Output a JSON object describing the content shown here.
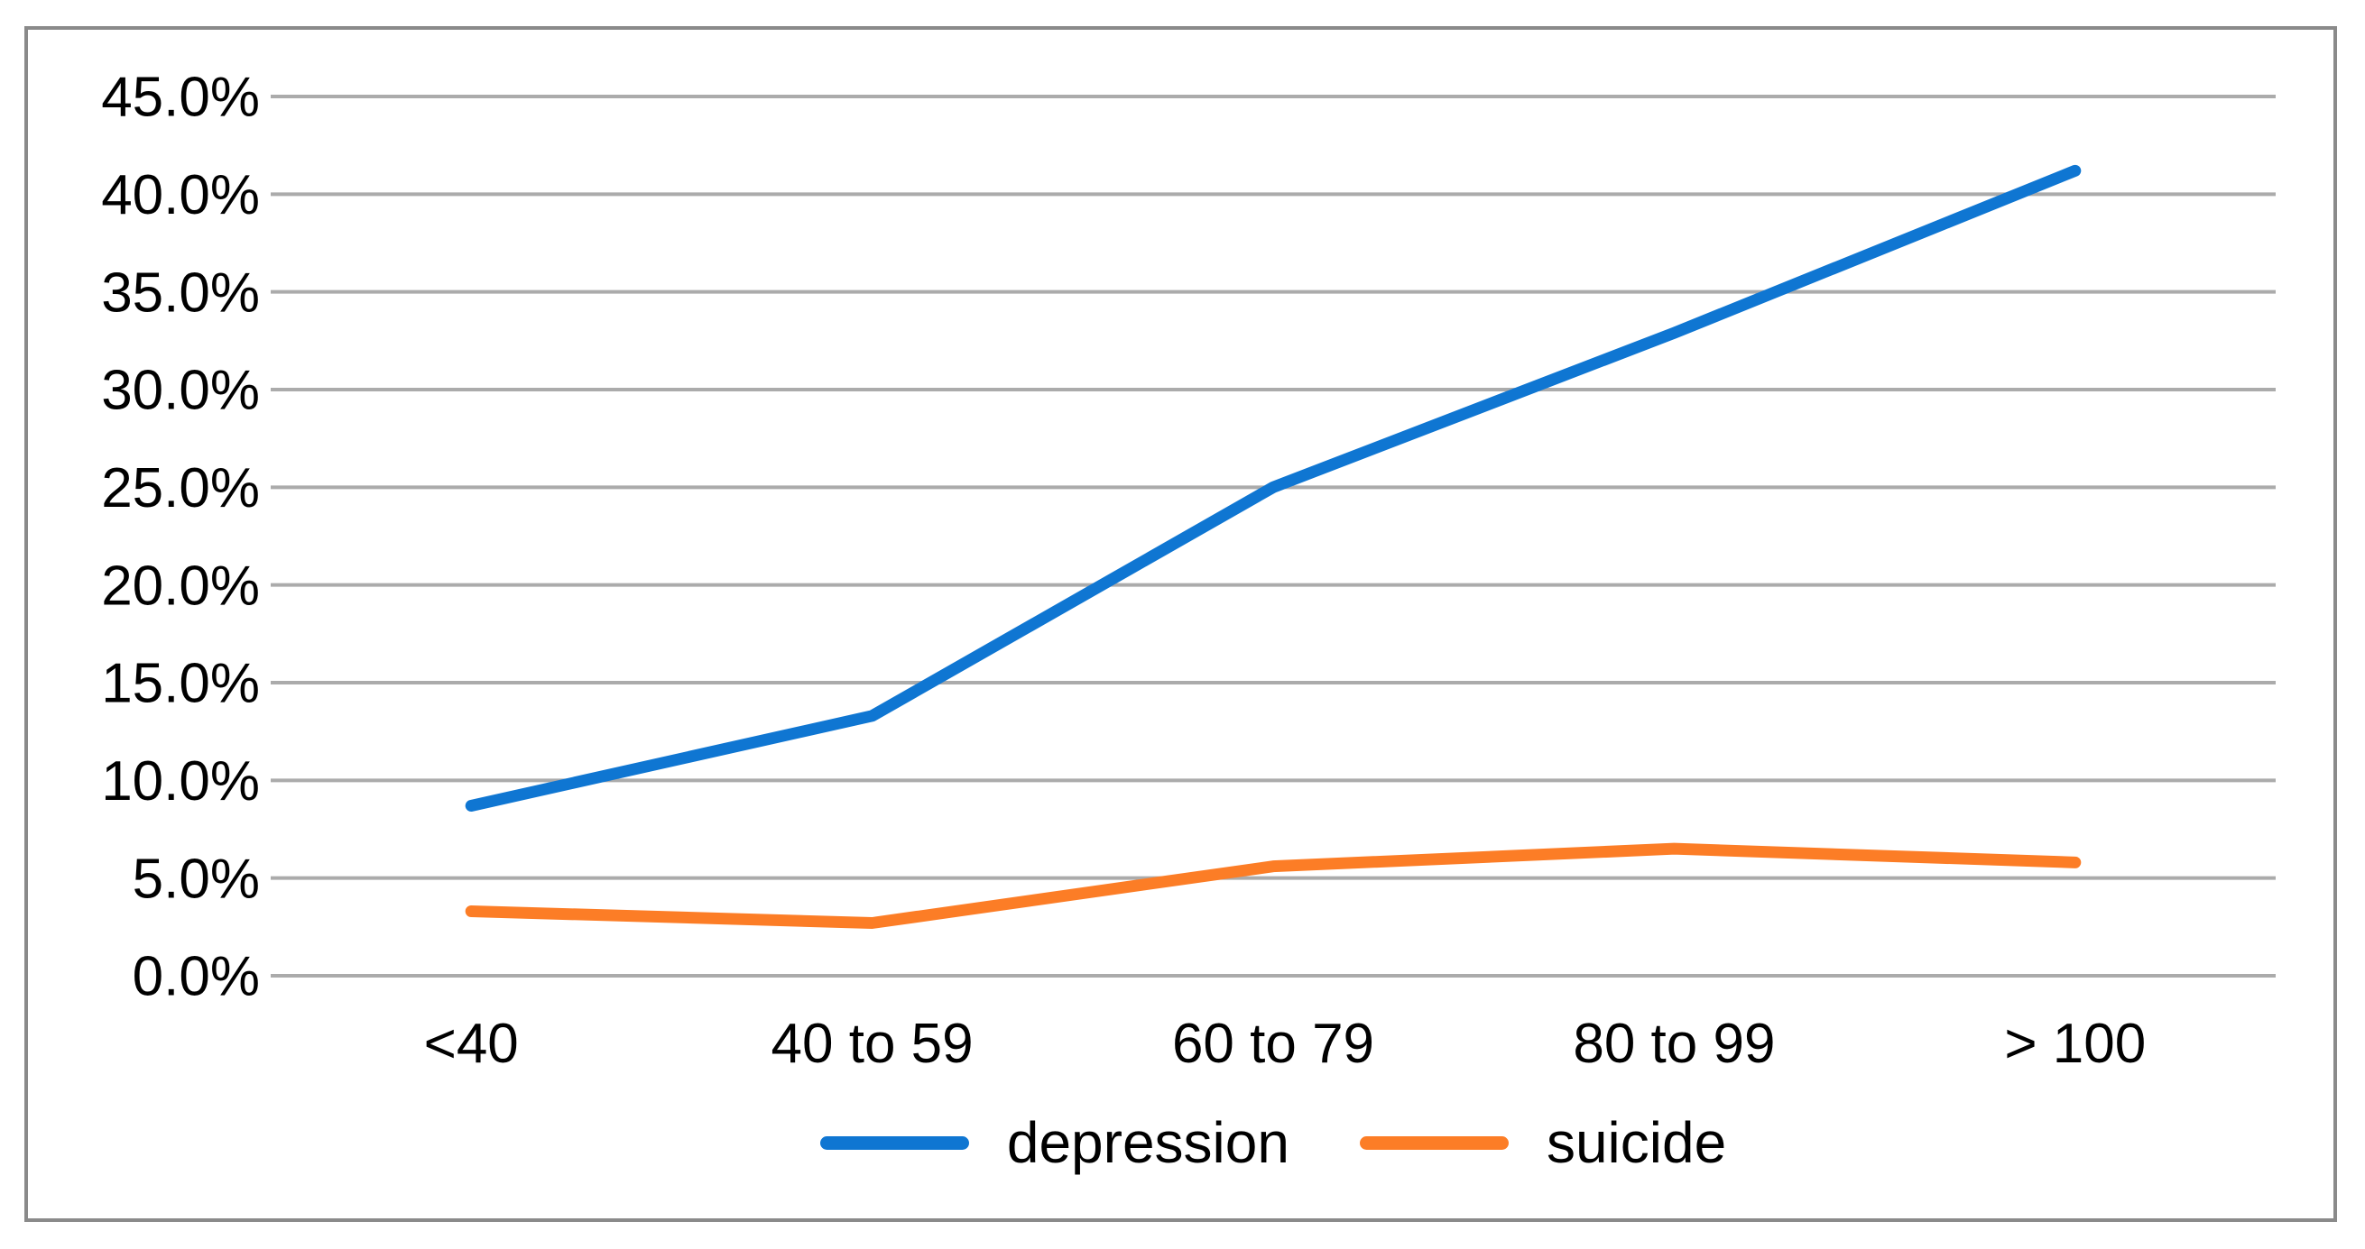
{
  "chart_data": {
    "type": "line",
    "title": "",
    "xlabel": "",
    "ylabel": "",
    "categories": [
      "<40",
      "40 to 59",
      "60 to 79",
      "80 to 99",
      "> 100"
    ],
    "series": [
      {
        "name": "depression",
        "color": "#0F76D2",
        "values": [
          8.7,
          13.3,
          25.0,
          32.9,
          41.2
        ]
      },
      {
        "name": "suicide",
        "color": "#FC7D26",
        "values": [
          3.3,
          2.7,
          5.6,
          6.5,
          5.8
        ]
      }
    ],
    "ylim": [
      0,
      45
    ],
    "y_tick_step": 5,
    "y_tick_labels": [
      "0.0%",
      "5.0%",
      "10.0%",
      "15.0%",
      "20.0%",
      "25.0%",
      "30.0%",
      "35.0%",
      "40.0%",
      "45.0%"
    ],
    "grid": true,
    "legend_position": "bottom-center",
    "colors": {
      "gridline": "#ABABAB",
      "frame_border": "#8A8A8A",
      "background": "#FFFFFF",
      "text": "#000000"
    }
  }
}
